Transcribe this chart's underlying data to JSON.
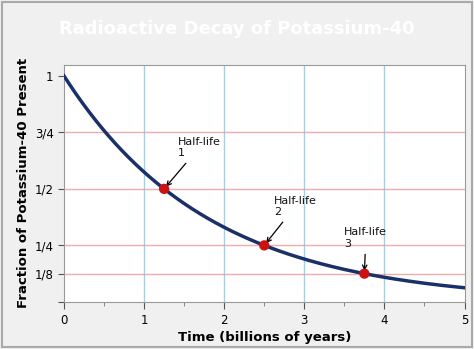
{
  "title": "Radioactive Decay of Potassium-40",
  "title_bg_color": "#2a7d7b",
  "title_text_color": "#ffffff",
  "xlabel": "Time (billions of years)",
  "ylabel": "Fraction of Potassium-40 Present",
  "xlim": [
    0,
    5
  ],
  "ylim": [
    0,
    1.05
  ],
  "half_life_period": 1.25,
  "curve_color": "#1a3068",
  "curve_linewidth": 2.5,
  "grid_color_vertical": "#8dd0e8",
  "grid_color_horizontal": "#e8a0a0",
  "outer_bg_color": "#e8e8e8",
  "inner_bg_color": "#f0f0f0",
  "plot_bg_color": "#ffffff",
  "yticks": [
    0,
    0.125,
    0.25,
    0.5,
    0.75,
    1.0
  ],
  "ytick_labels": [
    "",
    "1/8",
    "1/4",
    "1/2",
    "3/4",
    "1"
  ],
  "xticks": [
    0,
    1,
    2,
    3,
    4,
    5
  ],
  "point_color": "#cc1111",
  "point_size": 55,
  "font_size_title": 13,
  "font_size_labels": 9.5,
  "font_size_ticks": 8.5,
  "font_size_annotations": 8.0
}
